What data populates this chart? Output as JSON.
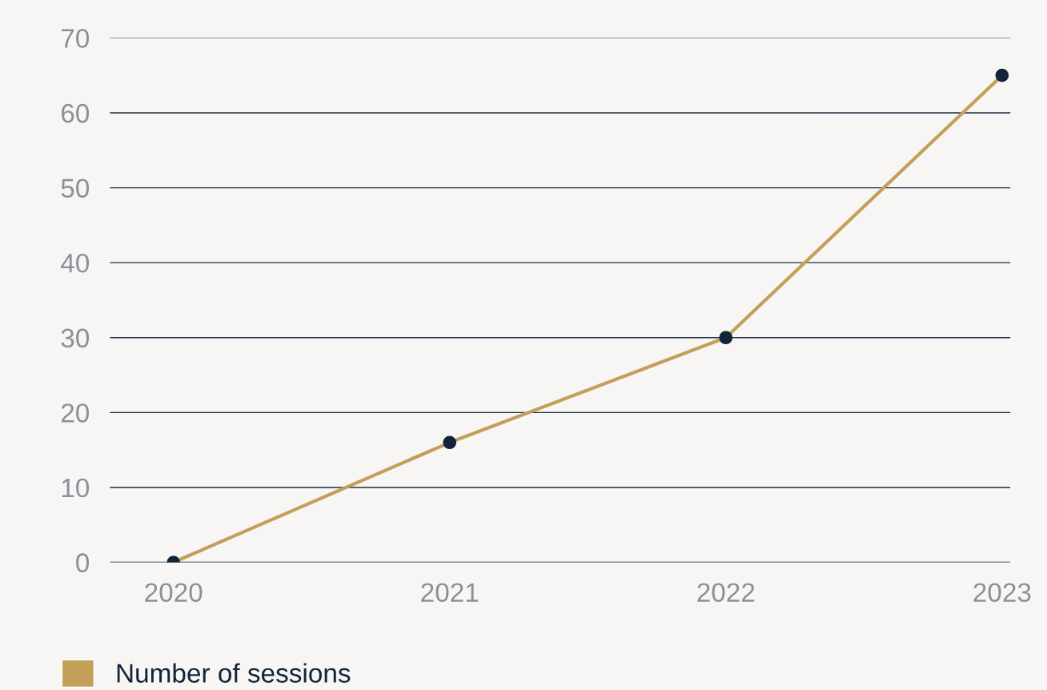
{
  "chart_data": {
    "type": "line",
    "categories": [
      "2020",
      "2021",
      "2022",
      "2023"
    ],
    "series": [
      {
        "name": "Number of sessions",
        "color": "#c39f5a",
        "values": [
          0,
          16,
          30,
          65
        ]
      }
    ],
    "marker": "circle",
    "ylim": [
      0,
      70
    ],
    "yticks": [
      0,
      10,
      20,
      30,
      40,
      50,
      60,
      70
    ],
    "grid": "y",
    "legend": "bottom left"
  }
}
